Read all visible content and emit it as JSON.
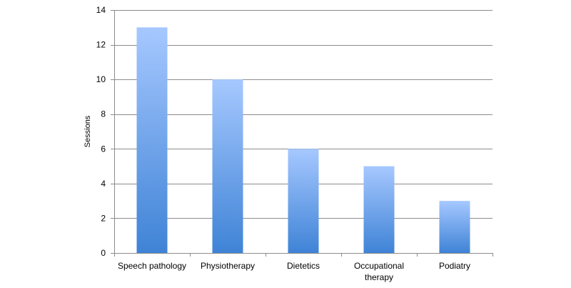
{
  "chart_data": {
    "type": "bar",
    "title": "",
    "xlabel": "",
    "ylabel": "Sessions",
    "categories": [
      [
        "Speech pathology"
      ],
      [
        "Physiotherapy"
      ],
      [
        "Dietetics"
      ],
      [
        "Occupational",
        "therapy"
      ],
      [
        "Podiatry"
      ]
    ],
    "values": [
      13,
      10,
      6,
      5,
      3
    ],
    "ylim": [
      0,
      14
    ],
    "yticks": [
      0,
      2,
      4,
      6,
      8,
      10,
      12,
      14
    ],
    "grid": true,
    "legend": "none",
    "colors": {
      "bar_top": "#a6c8ff",
      "bar_bottom": "#3f83d6",
      "grid": "#8c8c8c",
      "axis": "#8c8c8c"
    }
  }
}
